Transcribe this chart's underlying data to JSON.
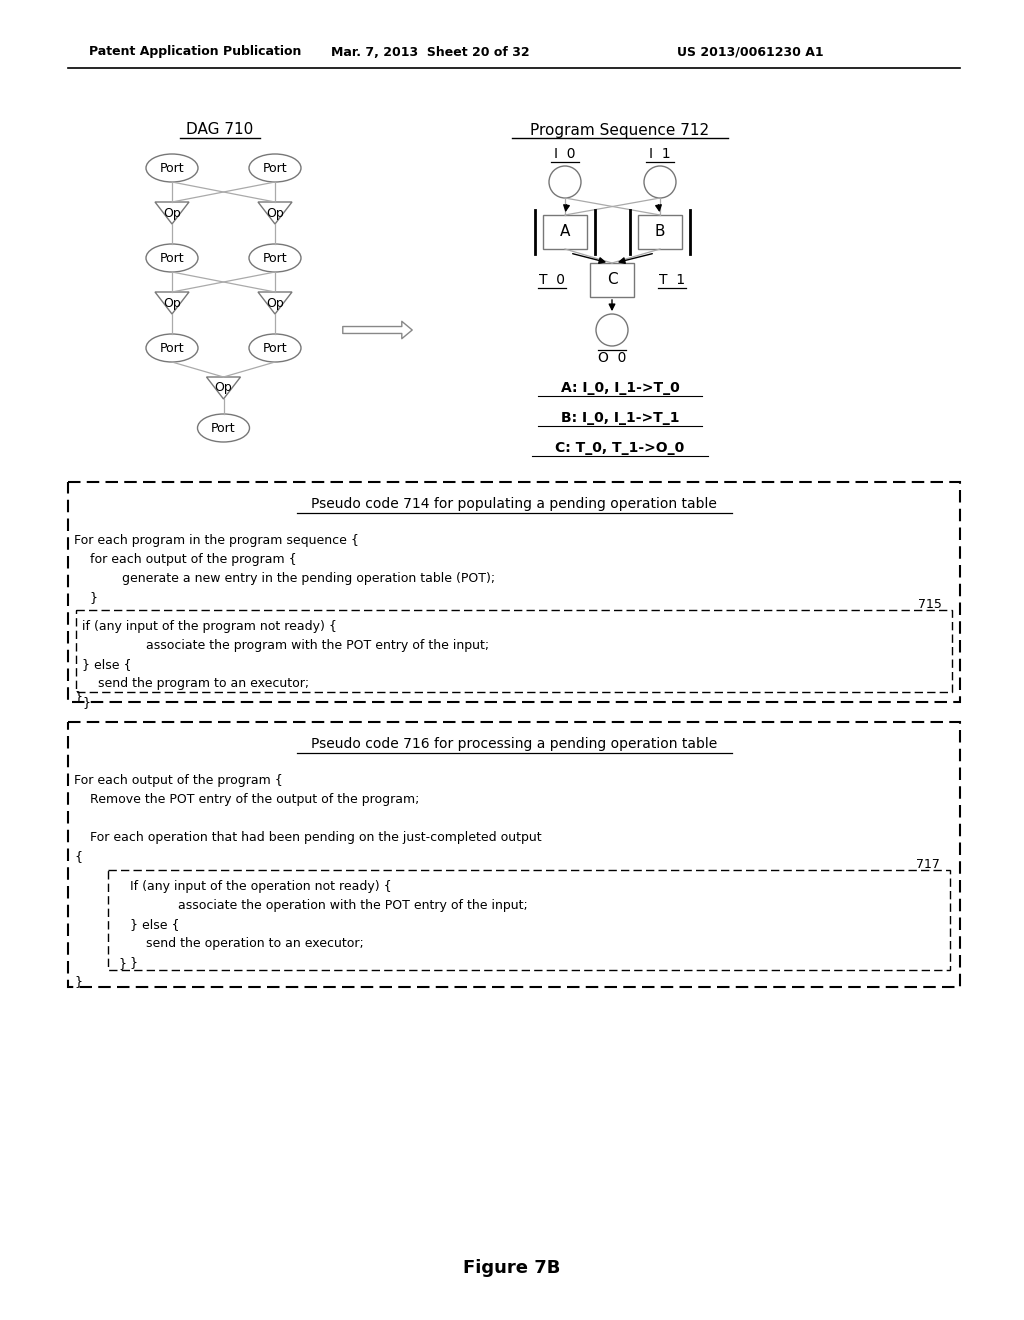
{
  "header_left": "Patent Application Publication",
  "header_mid": "Mar. 7, 2013  Sheet 20 of 32",
  "header_right": "US 2013/0061230 A1",
  "dag_title": "DAG 710",
  "prog_title": "Program Sequence 712",
  "figure_label": "Figure 7B",
  "pseudo1_title": "Pseudo code 714 for populating a pending operation table",
  "pseudo1_label": "715",
  "pseudo2_title": "Pseudo code 716 for processing a pending operation table",
  "pseudo2_label": "717",
  "bg_color": "#ffffff",
  "text_color": "#000000"
}
